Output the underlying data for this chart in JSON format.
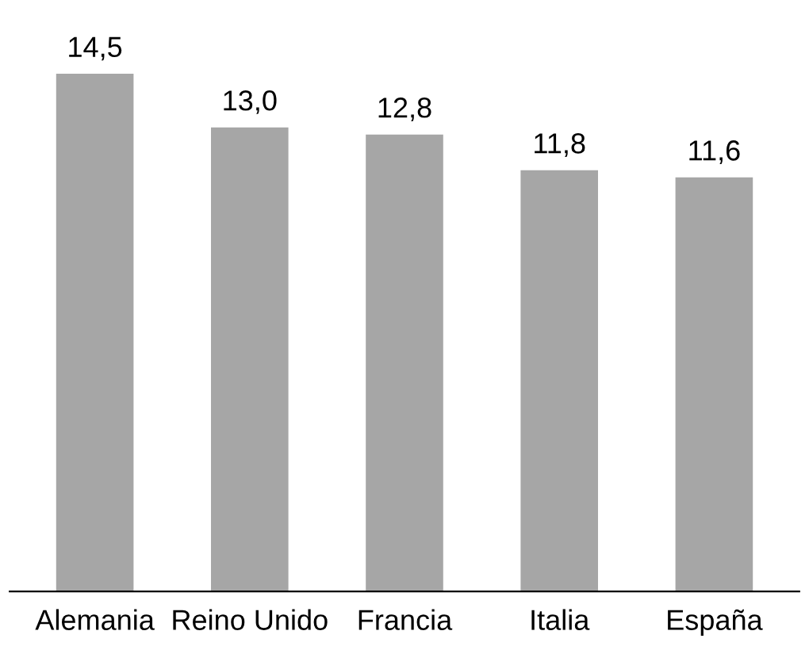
{
  "chart_data": {
    "type": "bar",
    "categories": [
      "Alemania",
      "Reino Unido",
      "Francia",
      "Italia",
      "España"
    ],
    "values": [
      14.5,
      13.0,
      12.8,
      11.8,
      11.6
    ],
    "value_labels": [
      "14,5",
      "13,0",
      "12,8",
      "11,8",
      "11,6"
    ],
    "color": "#a6a6a6",
    "grid": false,
    "legend": false
  }
}
